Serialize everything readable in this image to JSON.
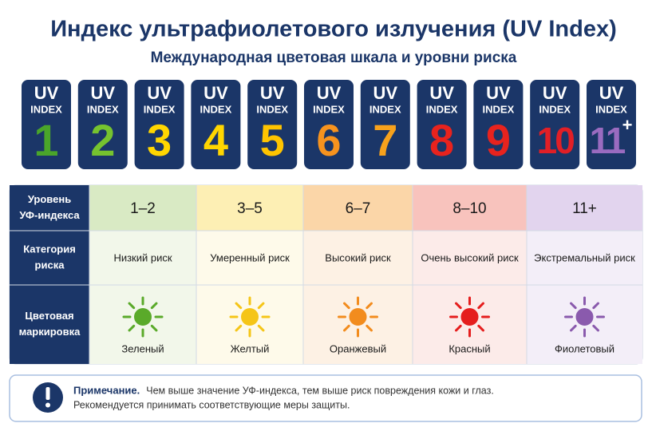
{
  "header": {
    "title": "Индекс ультрафиолетового излучения (UV Index)",
    "subtitle": "Международная цветовая шкала и уровни риска"
  },
  "badges": {
    "label_top": "UV",
    "label_bottom": "INDEX",
    "items": [
      {
        "number": 1,
        "color": "#4aa52a"
      },
      {
        "number": 2,
        "color": "#76c32f"
      },
      {
        "number": 3,
        "color": "#ffd600"
      },
      {
        "number": 4,
        "color": "#ffd600"
      },
      {
        "number": 5,
        "color": "#ffc400"
      },
      {
        "number": 6,
        "color": "#f7931e"
      },
      {
        "number": 7,
        "color": "#f8a21c"
      },
      {
        "number": 8,
        "color": "#e8231e"
      },
      {
        "number": 9,
        "color": "#e8231e"
      },
      {
        "number": 10,
        "color": "#e21f26"
      },
      {
        "number": 11,
        "superscript": "+",
        "color": "#9a6bc0"
      }
    ]
  },
  "table": {
    "row_headers": [
      [
        "Уровень",
        "УФ-индекса"
      ],
      [
        "Категория",
        "риска"
      ],
      [
        "Цветовая",
        "маркировка"
      ]
    ],
    "columns": [
      {
        "level": "1–2",
        "category": "Низкий риск",
        "color_name": "Зеленый",
        "color": "#5aaa2a",
        "header_bg": "#d9eac4",
        "body_bg": "#f2f7ea"
      },
      {
        "level": "3–5",
        "category": "Умеренный риск",
        "color_name": "Желтый",
        "color": "#f5c518",
        "header_bg": "#fdefb4",
        "body_bg": "#fefaea"
      },
      {
        "level": "6–7",
        "category": "Высокий риск",
        "color_name": "Оранжевый",
        "color": "#f28c1e",
        "header_bg": "#fbd6a8",
        "body_bg": "#fdf1e4"
      },
      {
        "level": "8–10",
        "category": "Очень высокий риск",
        "color_name": "Красный",
        "color": "#e51e1e",
        "header_bg": "#f8c3bd",
        "body_bg": "#fcebe9"
      },
      {
        "level": "11+",
        "category": "Экстремальный риск",
        "color_name": "Фиолетовый",
        "color": "#8a5aad",
        "header_bg": "#e2d4ee",
        "body_bg": "#f3eef8"
      }
    ]
  },
  "note": {
    "label": "Примечание.",
    "lines": [
      "Чем выше значение УФ-индекса, тем выше риск повреждения кожи и глаз.",
      "Рекомендуется принимать соответствующие меры защиты."
    ]
  }
}
